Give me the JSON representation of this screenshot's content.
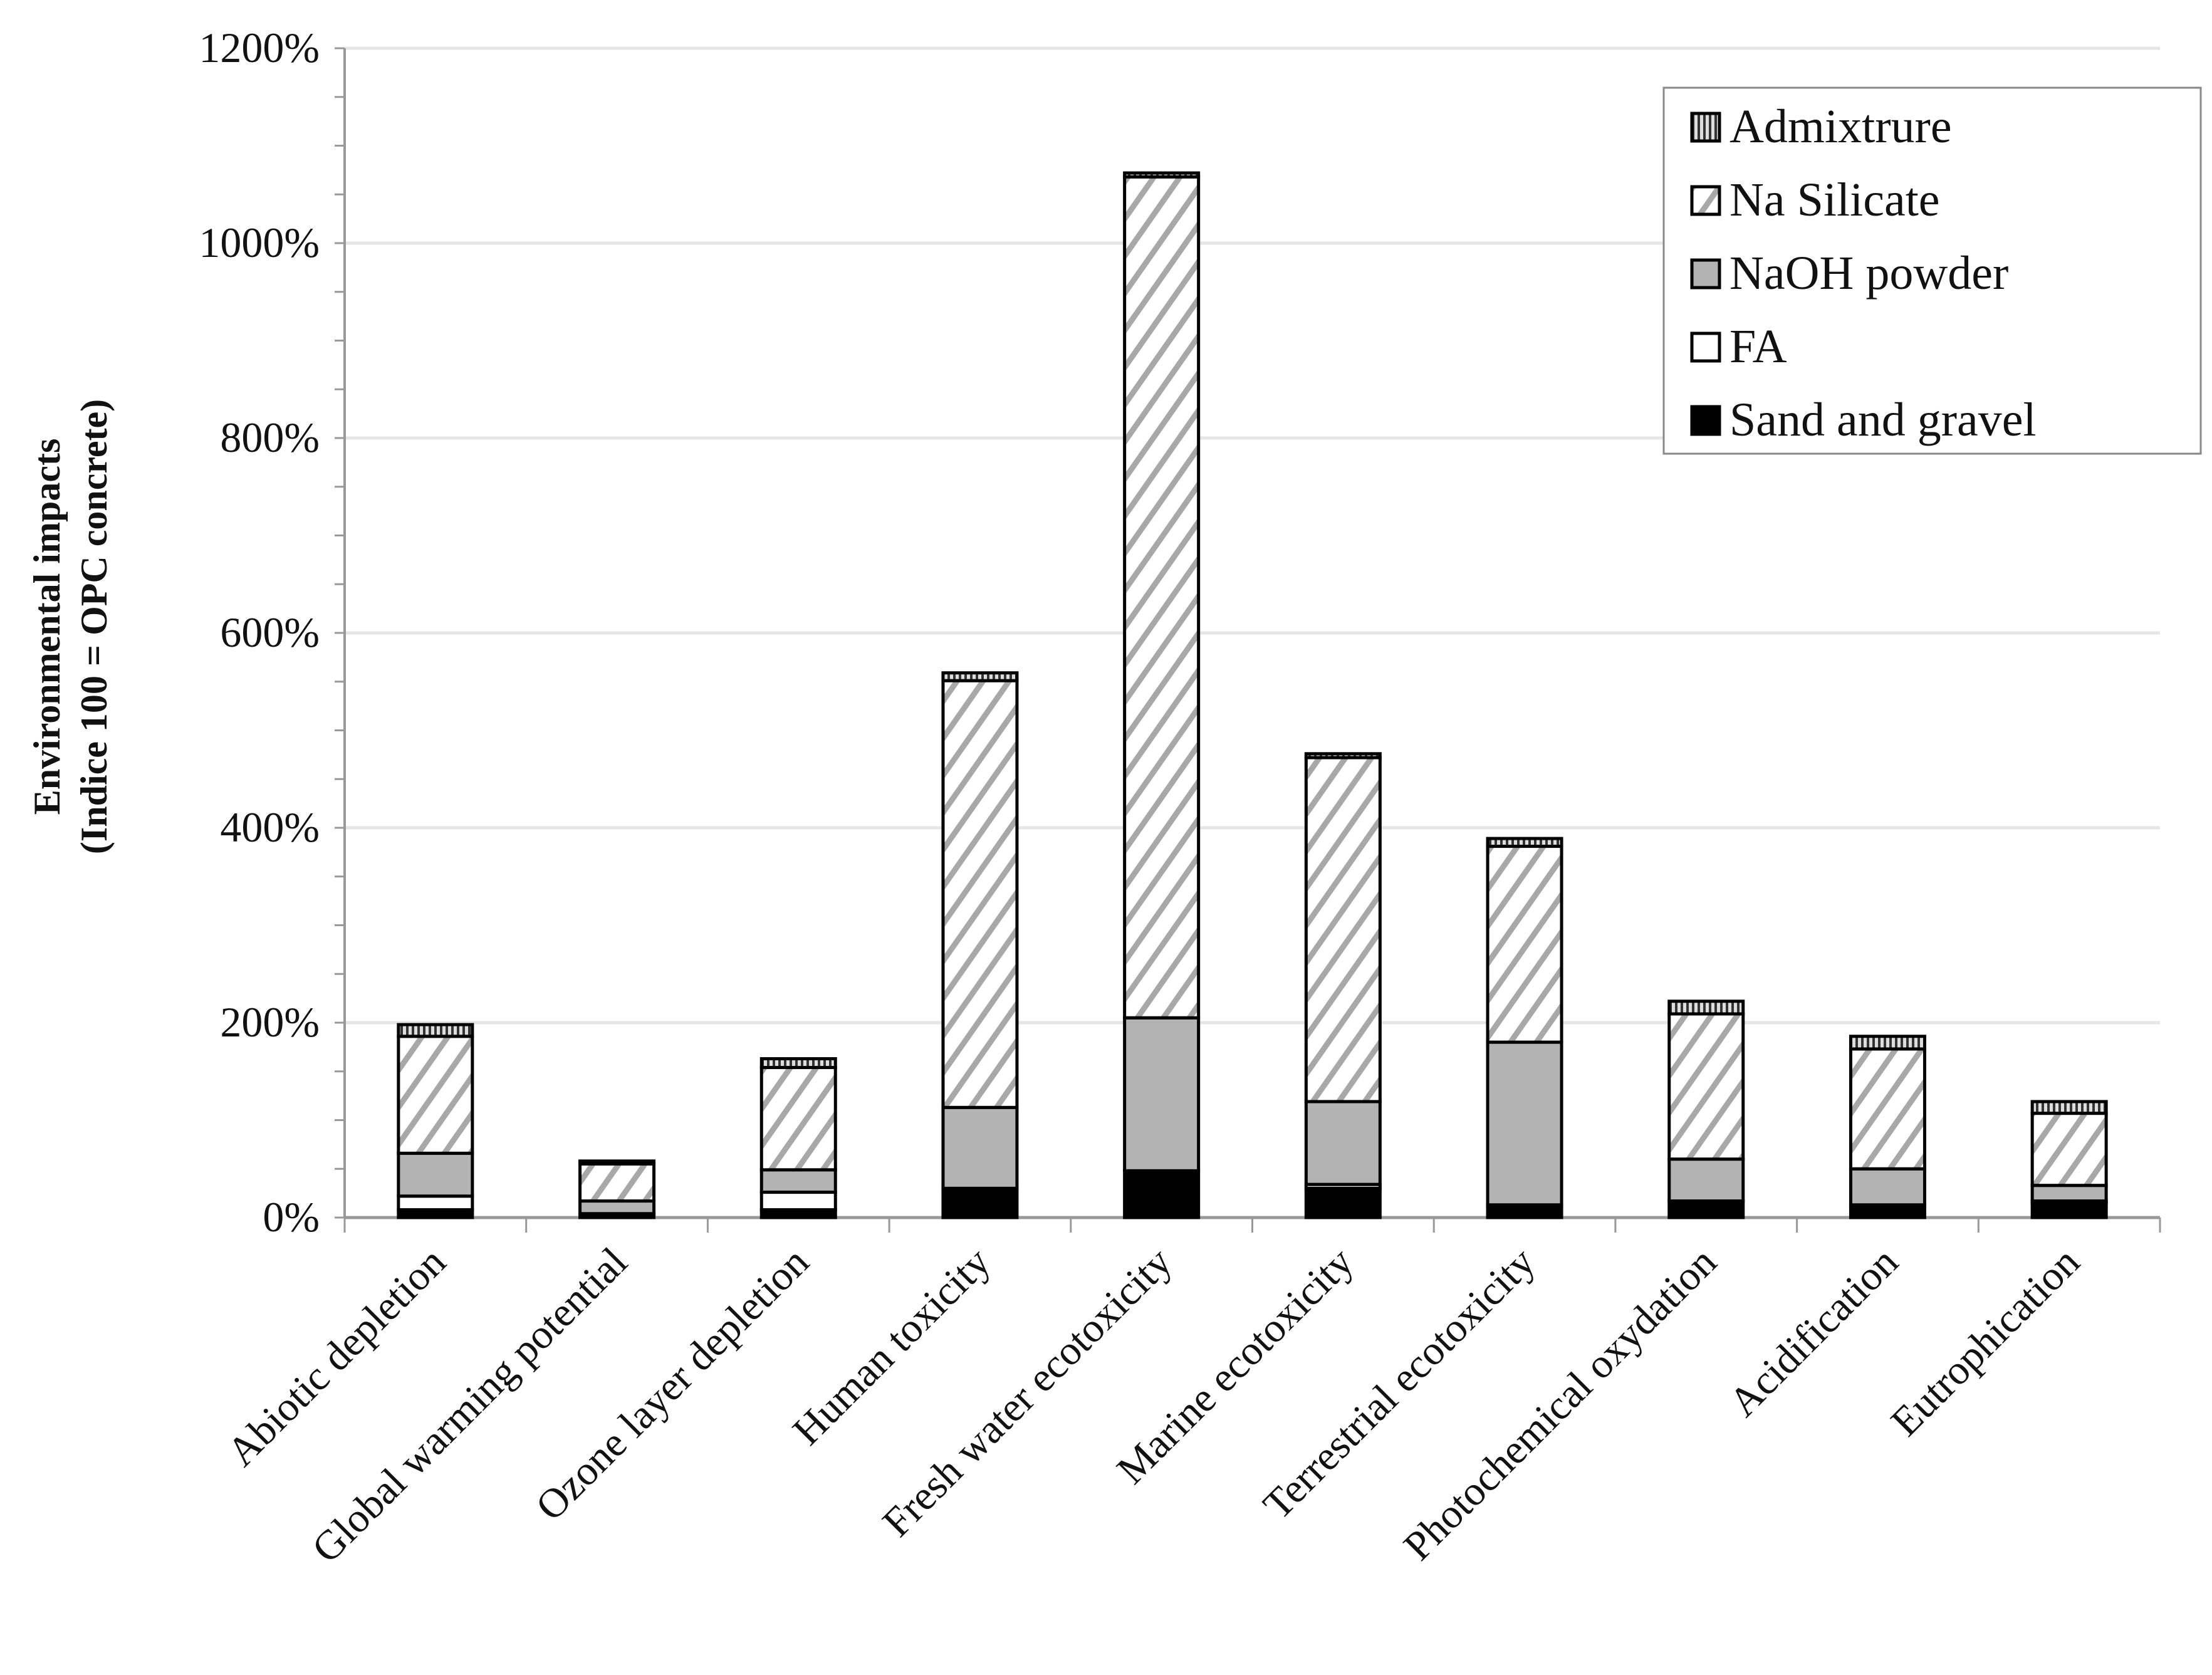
{
  "chart_data": {
    "type": "bar",
    "stacked": true,
    "title": "",
    "xlabel": "",
    "ylabel": [
      "Environmental impacts",
      "(Indice 100 = OPC concrete)"
    ],
    "ylim": [
      0,
      1200
    ],
    "yticks": [
      0,
      200,
      400,
      600,
      800,
      1000,
      1200
    ],
    "ytick_labels": [
      "0%",
      "200%",
      "400%",
      "600%",
      "800%",
      "1000%",
      "1200%"
    ],
    "grid": true,
    "legend_position": "top-right",
    "categories": [
      "Abiotic depletion",
      "Global warming potential",
      "Ozone layer depletion",
      "Human toxicity",
      "Fresh water ecotoxicity",
      "Marine ecotoxicity",
      "Terrestrial ecotoxicity",
      "Photochemical oxydation",
      "Acidification",
      "Eutrophication"
    ],
    "series": [
      {
        "name": "Sand and gravel",
        "fill": "black",
        "values": [
          8,
          3,
          8,
          30,
          48,
          30,
          13,
          17,
          13,
          15
        ]
      },
      {
        "name": "FA",
        "fill": "white",
        "values": [
          14,
          1,
          18,
          0,
          0,
          4,
          0,
          0,
          0,
          2
        ]
      },
      {
        "name": "NaOH powder",
        "fill": "gray",
        "values": [
          44,
          13,
          23,
          83,
          157,
          85,
          167,
          43,
          37,
          16
        ]
      },
      {
        "name": "Na Silicate",
        "fill": "diagonal-hatch",
        "values": [
          120,
          38,
          105,
          438,
          863,
          353,
          201,
          149,
          123,
          74
        ]
      },
      {
        "name": "Admixtrure",
        "fill": "vertical-hatch",
        "values": [
          12,
          3,
          9,
          8,
          4,
          4,
          8,
          13,
          13,
          12
        ]
      }
    ],
    "legend_order": [
      "Admixtrure",
      "Na Silicate",
      "NaOH powder",
      "FA",
      "Sand and gravel"
    ]
  }
}
